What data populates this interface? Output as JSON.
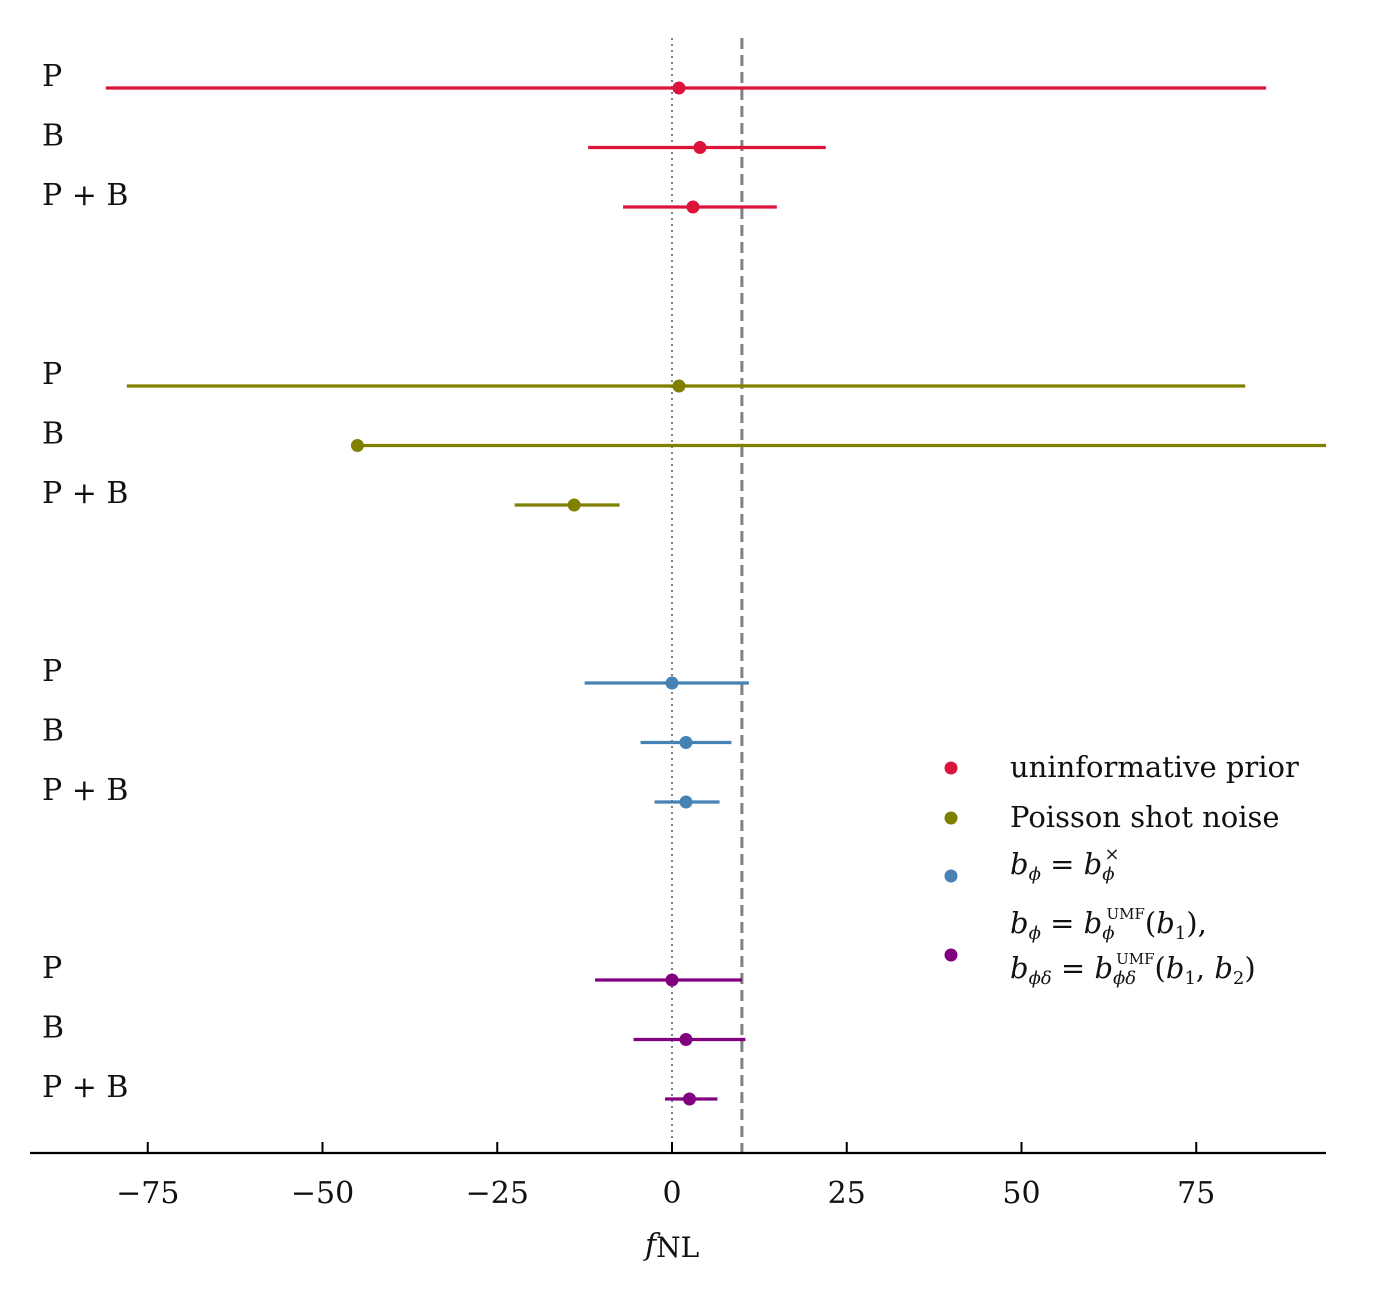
{
  "chart_data": {
    "type": "errorbar",
    "xlabel": "f",
    "xlabel_sub": "NL",
    "xlim": [
      -90,
      94
    ],
    "x_ticks": [
      -75,
      -50,
      -25,
      0,
      25,
      50,
      75
    ],
    "x_tick_labels": [
      "−75",
      "−50",
      "−25",
      "0",
      "25",
      "50",
      "75"
    ],
    "reference_lines": [
      {
        "x": 0,
        "style": "dotted",
        "color": "#808080"
      },
      {
        "x": 10,
        "style": "dashed",
        "color": "#808080"
      }
    ],
    "groups": [
      {
        "name": "uninformative prior",
        "color": "#dc143c",
        "rows": [
          {
            "label": "P",
            "center": 1,
            "low": -81,
            "high": 85
          },
          {
            "label": "B",
            "center": 4,
            "low": -12,
            "high": 22
          },
          {
            "label": "P + B",
            "center": 3,
            "low": -7,
            "high": 15
          }
        ]
      },
      {
        "name": "Poisson shot noise",
        "color": "#808000",
        "rows": [
          {
            "label": "P",
            "center": 1,
            "low": -78,
            "high": 82
          },
          {
            "label": "B",
            "center": -45,
            "low": -45,
            "high": 94
          },
          {
            "label": "P + B",
            "center": -14,
            "low": -22.5,
            "high": -7.5
          }
        ]
      },
      {
        "name": "b_phi = b_phi^x",
        "color": "#4682b4",
        "rows": [
          {
            "label": "P",
            "center": 0,
            "low": -12.5,
            "high": 11
          },
          {
            "label": "B",
            "center": 2,
            "low": -4.5,
            "high": 8.5
          },
          {
            "label": "P + B",
            "center": 2,
            "low": -2.5,
            "high": 6.8
          }
        ]
      },
      {
        "name": "b_phi = b_phi^UMF(b1), b_phi_delta = b_phi_delta^UMF(b1, b2)",
        "color": "#800080",
        "rows": [
          {
            "label": "P",
            "center": 0,
            "low": -11,
            "high": 10
          },
          {
            "label": "B",
            "center": 2,
            "low": -5.5,
            "high": 10.5
          },
          {
            "label": "P + B",
            "center": 2.5,
            "low": -1,
            "high": 6.5
          }
        ]
      }
    ],
    "legend": {
      "placement": "right-center",
      "entries": [
        {
          "text": "uninformative prior",
          "color": "#dc143c"
        },
        {
          "text": "Poisson shot noise",
          "color": "#808000"
        },
        {
          "color": "#4682b4"
        },
        {
          "color": "#800080"
        }
      ]
    }
  }
}
